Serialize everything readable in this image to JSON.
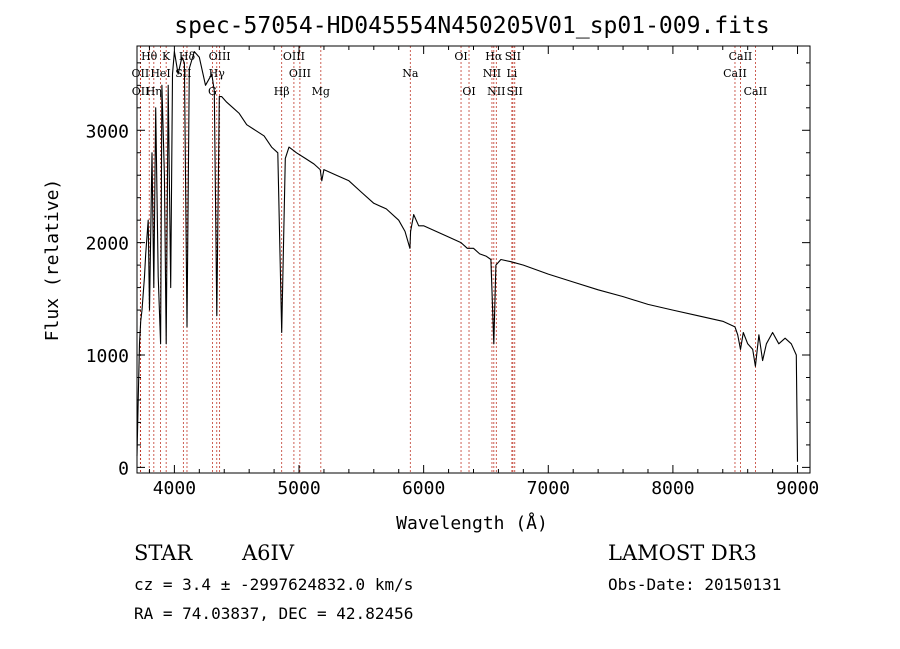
{
  "chart_data": {
    "type": "line",
    "title": "spec-57054-HD045554N450205V01_sp01-009.fits",
    "xlabel": "Wavelength (Å)",
    "ylabel": "Flux (relative)",
    "xlim": [
      3700,
      9100
    ],
    "ylim": [
      -50,
      3750
    ],
    "xticks": [
      4000,
      5000,
      6000,
      7000,
      8000,
      9000
    ],
    "yticks": [
      0,
      1000,
      2000,
      3000
    ],
    "series": [
      {
        "name": "spectrum",
        "x": [
          3700,
          3710,
          3720,
          3730,
          3740,
          3760,
          3770,
          3790,
          3800,
          3820,
          3835,
          3850,
          3870,
          3889,
          3900,
          3920,
          3934,
          3950,
          3970,
          3985,
          4000,
          4030,
          4060,
          4080,
          4101,
          4120,
          4160,
          4200,
          4250,
          4300,
          4320,
          4340,
          4360,
          4380,
          4420,
          4470,
          4520,
          4580,
          4650,
          4720,
          4780,
          4830,
          4861,
          4890,
          4920,
          4980,
          5050,
          5120,
          5170,
          5183,
          5200,
          5300,
          5400,
          5500,
          5600,
          5700,
          5800,
          5850,
          5890,
          5895,
          5920,
          5960,
          6000,
          6100,
          6200,
          6300,
          6350,
          6400,
          6450,
          6500,
          6540,
          6563,
          6580,
          6620,
          6700,
          6800,
          7000,
          7200,
          7400,
          7600,
          7800,
          8000,
          8200,
          8400,
          8498,
          8520,
          8542,
          8565,
          8600,
          8640,
          8662,
          8690,
          8720,
          8750,
          8800,
          8850,
          8900,
          8950,
          8990,
          9000
        ],
        "values": [
          100,
          600,
          1100,
          1300,
          1400,
          1700,
          1900,
          2200,
          1400,
          2800,
          1600,
          3200,
          1700,
          1100,
          3400,
          2600,
          1100,
          3400,
          1600,
          3500,
          3700,
          3500,
          3650,
          3600,
          1250,
          3550,
          3700,
          3650,
          3400,
          3500,
          3350,
          1350,
          3300,
          3300,
          3250,
          3200,
          3150,
          3050,
          3000,
          2950,
          2850,
          2800,
          1200,
          2750,
          2850,
          2800,
          2750,
          2700,
          2650,
          2550,
          2650,
          2600,
          2550,
          2450,
          2350,
          2300,
          2200,
          2100,
          1950,
          2100,
          2250,
          2150,
          2150,
          2100,
          2050,
          2000,
          1950,
          1950,
          1900,
          1880,
          1850,
          1100,
          1800,
          1850,
          1830,
          1800,
          1720,
          1650,
          1580,
          1520,
          1450,
          1400,
          1350,
          1300,
          1250,
          1180,
          1050,
          1200,
          1100,
          1050,
          900,
          1180,
          950,
          1100,
          1200,
          1100,
          1150,
          1100,
          1000,
          50
        ]
      }
    ],
    "spectral_lines": [
      {
        "label": "Hθ",
        "wave": 3798,
        "row": 1
      },
      {
        "label": "K",
        "wave": 3934,
        "row": 1
      },
      {
        "label": "Hδ",
        "wave": 4101,
        "row": 1
      },
      {
        "label": "OIII",
        "wave": 4363,
        "row": 1
      },
      {
        "label": "OIII",
        "wave": 4959,
        "row": 1
      },
      {
        "label": "OI",
        "wave": 6300,
        "row": 1
      },
      {
        "label": "Hα",
        "wave": 6563,
        "row": 1
      },
      {
        "label": "SII",
        "wave": 6716,
        "row": 1
      },
      {
        "label": "CaII",
        "wave": 8542,
        "row": 1
      },
      {
        "label": "OII",
        "wave": 3727,
        "row": 2
      },
      {
        "label": "HeI",
        "wave": 3889,
        "row": 2
      },
      {
        "label": "SII",
        "wave": 4072,
        "row": 2
      },
      {
        "label": "Hγ",
        "wave": 4340,
        "row": 2
      },
      {
        "label": "OIII",
        "wave": 5007,
        "row": 2
      },
      {
        "label": "Na",
        "wave": 5893,
        "row": 2
      },
      {
        "label": "NII",
        "wave": 6548,
        "row": 2
      },
      {
        "label": "Li",
        "wave": 6708,
        "row": 2
      },
      {
        "label": "CaII",
        "wave": 8498,
        "row": 2
      },
      {
        "label": "OII",
        "wave": 3729,
        "row": 3
      },
      {
        "label": "Hη",
        "wave": 3835,
        "row": 3
      },
      {
        "label": "G",
        "wave": 4305,
        "row": 3
      },
      {
        "label": "Hβ",
        "wave": 4861,
        "row": 3
      },
      {
        "label": "Mg",
        "wave": 5175,
        "row": 3
      },
      {
        "label": "OI",
        "wave": 6364,
        "row": 3
      },
      {
        "label": "NII",
        "wave": 6583,
        "row": 3
      },
      {
        "label": "SII",
        "wave": 6731,
        "row": 3
      },
      {
        "label": "CaII",
        "wave": 8662,
        "row": 3
      }
    ]
  },
  "info": {
    "object_class": "STAR",
    "subclass": "A6IV",
    "survey": "LAMOST DR3",
    "cz": "cz = 3.4 ± -2997624832.0 km/s",
    "obs_date": "Obs-Date: 20150131",
    "radec": "RA =  74.03837, DEC =  42.82456"
  }
}
